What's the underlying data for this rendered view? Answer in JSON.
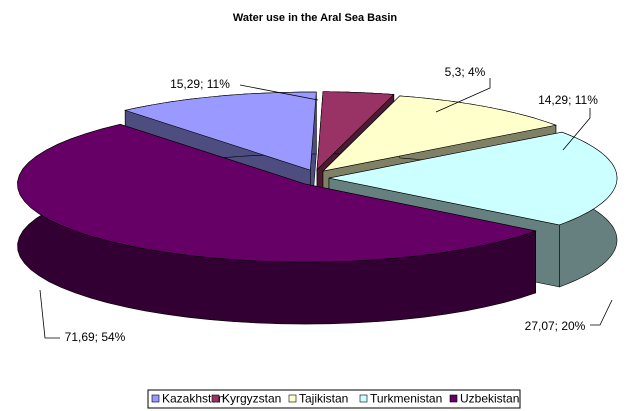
{
  "chart_data": {
    "type": "pie3d",
    "title": "Water use in the Aral Sea Basin",
    "categories": [
      "Kazakhstan",
      "Kyrgyzstan",
      "Tajikistan",
      "Turkmenistan",
      "Uzbekistan"
    ],
    "values": [
      15.29,
      5.3,
      14.29,
      27.07,
      71.69
    ],
    "value_labels": [
      "15,29; 11%",
      "5,3; 4%",
      "14,29; 11%",
      "27,07; 20%",
      "71,69; 54%"
    ],
    "colors": [
      "#9999ff",
      "#993366",
      "#ffffcc",
      "#ccffff",
      "#660066"
    ],
    "legend": "bottom"
  }
}
